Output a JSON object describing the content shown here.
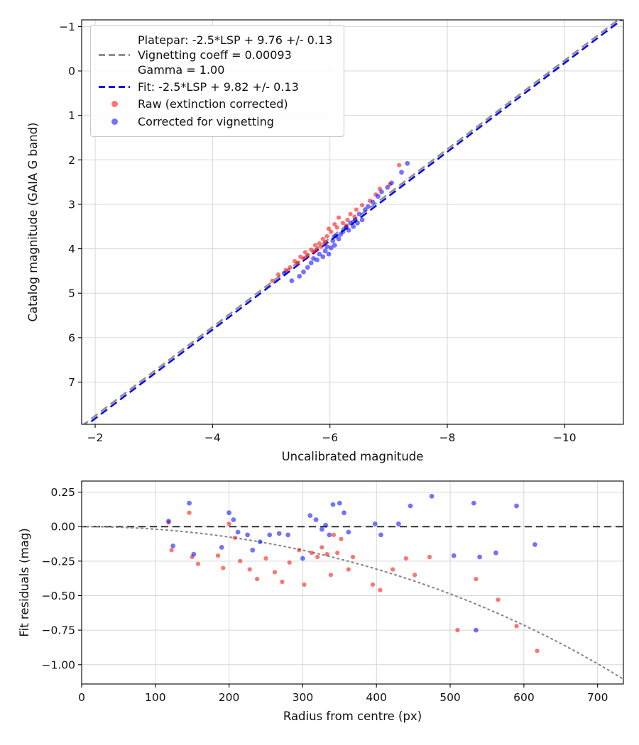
{
  "colors": {
    "raw_points": "rgba(255,0,0,0.55)",
    "corrected_points": "rgba(0,0,255,0.55)",
    "platepar_line": "#909090",
    "fit_line": "#0b0bee",
    "zero_line": "#3d3d3d",
    "vignetting_curve": "#8a8a8a",
    "grid": "#d7d7d7"
  },
  "chart_data": [
    {
      "type": "scatter",
      "title": "",
      "xlabel": "Uncalibrated magnitude",
      "ylabel": "Catalog magnitude (GAIA G band)",
      "xlim": [
        -1.77,
        -11.0
      ],
      "ylim": [
        -1.15,
        7.95
      ],
      "x_axis_inverted": true,
      "y_axis_inverted": true,
      "grid": true,
      "legend_loc": "upper left",
      "xticks": [
        -2,
        -4,
        -6,
        -8,
        -10
      ],
      "yticks": [
        -1,
        0,
        1,
        2,
        3,
        4,
        5,
        6,
        7
      ],
      "ab_lines": [
        {
          "name": "platepar",
          "slope": 1,
          "intercept": 9.76,
          "color": "#909090",
          "dash": "11 6",
          "width": 2.6
        },
        {
          "name": "fit",
          "slope": 1,
          "intercept": 9.82,
          "color": "#0b0bee",
          "dash": "11 6",
          "width": 2.6
        }
      ],
      "legend": {
        "platepar_lines": [
          "Platepar: -2.5*LSP + 9.76 +/- 0.13",
          "Vignetting coeff = 0.00093",
          "Gamma = 1.00"
        ],
        "fit_label": "Fit: -2.5*LSP + 9.82 +/- 0.13",
        "raw_label": "Raw (extinction corrected)",
        "corrected_label": "Corrected for vignetting"
      },
      "series": [
        {
          "name": "raw",
          "label": "Raw (extinction corrected)",
          "color": "rgba(255,0,0,0.55)",
          "marker_r": 3.1,
          "points": [
            [
              -7.18,
              2.12
            ],
            [
              -7.02,
              2.55
            ],
            [
              -6.85,
              2.65
            ],
            [
              -6.78,
              2.78
            ],
            [
              -6.68,
              2.92
            ],
            [
              -6.55,
              3.02
            ],
            [
              -6.45,
              3.12
            ],
            [
              -6.42,
              3.28
            ],
            [
              -6.35,
              3.22
            ],
            [
              -6.3,
              3.35
            ],
            [
              -6.28,
              3.48
            ],
            [
              -6.22,
              3.42
            ],
            [
              -6.15,
              3.3
            ],
            [
              -6.12,
              3.52
            ],
            [
              -6.08,
              3.45
            ],
            [
              -6.02,
              3.62
            ],
            [
              -5.98,
              3.55
            ],
            [
              -5.95,
              3.72
            ],
            [
              -5.92,
              3.85
            ],
            [
              -5.88,
              3.78
            ],
            [
              -5.85,
              3.95
            ],
            [
              -5.82,
              3.88
            ],
            [
              -5.78,
              4.02
            ],
            [
              -5.75,
              3.92
            ],
            [
              -5.72,
              4.08
            ],
            [
              -5.68,
              4.02
            ],
            [
              -5.62,
              4.15
            ],
            [
              -5.58,
              4.08
            ],
            [
              -5.55,
              4.22
            ],
            [
              -5.5,
              4.18
            ],
            [
              -5.45,
              4.32
            ],
            [
              -5.4,
              4.28
            ],
            [
              -5.32,
              4.42
            ],
            [
              -5.25,
              4.48
            ],
            [
              -5.12,
              4.58
            ],
            [
              -5.02,
              4.72
            ]
          ]
        },
        {
          "name": "corrected",
          "label": "Corrected for vignetting",
          "color": "rgba(0,0,255,0.55)",
          "marker_r": 3.4,
          "points": [
            [
              -7.32,
              2.08
            ],
            [
              -7.22,
              2.28
            ],
            [
              -7.05,
              2.52
            ],
            [
              -6.98,
              2.62
            ],
            [
              -6.88,
              2.72
            ],
            [
              -6.82,
              2.82
            ],
            [
              -6.73,
              2.95
            ],
            [
              -6.65,
              3.05
            ],
            [
              -6.6,
              3.12
            ],
            [
              -6.55,
              3.35
            ],
            [
              -6.5,
              3.22
            ],
            [
              -6.47,
              3.42
            ],
            [
              -6.43,
              3.35
            ],
            [
              -6.4,
              3.5
            ],
            [
              -6.35,
              3.42
            ],
            [
              -6.32,
              3.58
            ],
            [
              -6.28,
              3.52
            ],
            [
              -6.22,
              3.62
            ],
            [
              -6.18,
              3.68
            ],
            [
              -6.15,
              3.78
            ],
            [
              -6.1,
              3.72
            ],
            [
              -6.08,
              3.92
            ],
            [
              -6.05,
              3.82
            ],
            [
              -6.02,
              3.98
            ],
            [
              -5.98,
              4.12
            ],
            [
              -5.95,
              3.95
            ],
            [
              -5.92,
              4.05
            ],
            [
              -5.88,
              4.18
            ],
            [
              -5.82,
              4.12
            ],
            [
              -5.78,
              4.25
            ],
            [
              -5.72,
              4.22
            ],
            [
              -5.68,
              4.32
            ],
            [
              -5.62,
              4.42
            ],
            [
              -5.55,
              4.52
            ],
            [
              -5.48,
              4.62
            ],
            [
              -5.35,
              4.72
            ],
            [
              -5.22,
              4.55
            ]
          ]
        }
      ]
    },
    {
      "type": "scatter",
      "title": "",
      "xlabel": "Radius from centre (px)",
      "ylabel": "Fit residuals (mag)",
      "xlim": [
        0,
        735
      ],
      "ylim": [
        0.33,
        -1.14
      ],
      "grid": true,
      "xticks": [
        0,
        100,
        200,
        300,
        400,
        500,
        600,
        700
      ],
      "yticks": [
        0.25,
        0,
        -0.25,
        -0.5,
        -0.75,
        -1
      ],
      "ytick_decimals": 2,
      "hlines": [
        {
          "name": "zero-line",
          "y": 0,
          "color": "#3d3d3d",
          "dash": "10 6",
          "width": 2.2
        }
      ],
      "curve": {
        "name": "vignetting-model-curve",
        "model": "2.5*log10(cos(coeff*r)^4)",
        "coeff": 0.00093,
        "color": "#8a8a8a",
        "dash": "2 5",
        "width": 2.2
      },
      "series": [
        {
          "name": "raw",
          "label": "Raw (extinction corrected)",
          "color": "rgba(255,0,0,0.55)",
          "marker_r": 3.1,
          "points": [
            [
              118,
              0.03
            ],
            [
              122,
              -0.17
            ],
            [
              146,
              0.1
            ],
            [
              150,
              -0.22
            ],
            [
              158,
              -0.27
            ],
            [
              185,
              -0.21
            ],
            [
              192,
              -0.3
            ],
            [
              200,
              0.02
            ],
            [
              208,
              -0.08
            ],
            [
              215,
              -0.25
            ],
            [
              228,
              -0.31
            ],
            [
              238,
              -0.38
            ],
            [
              250,
              -0.23
            ],
            [
              262,
              -0.33
            ],
            [
              272,
              -0.4
            ],
            [
              282,
              -0.26
            ],
            [
              295,
              -0.17
            ],
            [
              302,
              -0.42
            ],
            [
              312,
              -0.19
            ],
            [
              320,
              -0.22
            ],
            [
              326,
              -0.15
            ],
            [
              333,
              -0.2
            ],
            [
              338,
              -0.35
            ],
            [
              342,
              -0.06
            ],
            [
              347,
              -0.19
            ],
            [
              352,
              -0.09
            ],
            [
              362,
              -0.31
            ],
            [
              368,
              -0.22
            ],
            [
              395,
              -0.42
            ],
            [
              405,
              -0.46
            ],
            [
              422,
              -0.31
            ],
            [
              440,
              -0.23
            ],
            [
              452,
              -0.35
            ],
            [
              472,
              -0.22
            ],
            [
              510,
              -0.75
            ],
            [
              535,
              -0.38
            ],
            [
              565,
              -0.53
            ],
            [
              590,
              -0.72
            ],
            [
              618,
              -0.9
            ]
          ]
        },
        {
          "name": "corrected",
          "label": "Corrected for vignetting",
          "color": "rgba(0,0,255,0.55)",
          "marker_r": 3.4,
          "points": [
            [
              118,
              0.04
            ],
            [
              124,
              -0.14
            ],
            [
              146,
              0.17
            ],
            [
              152,
              -0.2
            ],
            [
              190,
              -0.15
            ],
            [
              200,
              0.1
            ],
            [
              206,
              0.05
            ],
            [
              212,
              -0.04
            ],
            [
              225,
              -0.06
            ],
            [
              232,
              -0.17
            ],
            [
              242,
              -0.11
            ],
            [
              255,
              -0.06
            ],
            [
              268,
              -0.05
            ],
            [
              280,
              -0.06
            ],
            [
              300,
              -0.23
            ],
            [
              310,
              0.08
            ],
            [
              318,
              0.05
            ],
            [
              326,
              -0.02
            ],
            [
              331,
              0.01
            ],
            [
              336,
              -0.06
            ],
            [
              341,
              0.16
            ],
            [
              350,
              0.17
            ],
            [
              356,
              0.1
            ],
            [
              362,
              -0.04
            ],
            [
              398,
              0.02
            ],
            [
              406,
              -0.06
            ],
            [
              430,
              0.02
            ],
            [
              446,
              0.15
            ],
            [
              475,
              0.22
            ],
            [
              505,
              -0.21
            ],
            [
              532,
              0.17
            ],
            [
              535,
              -0.75
            ],
            [
              540,
              -0.22
            ],
            [
              562,
              -0.19
            ],
            [
              590,
              0.15
            ],
            [
              615,
              -0.13
            ]
          ]
        }
      ]
    }
  ]
}
